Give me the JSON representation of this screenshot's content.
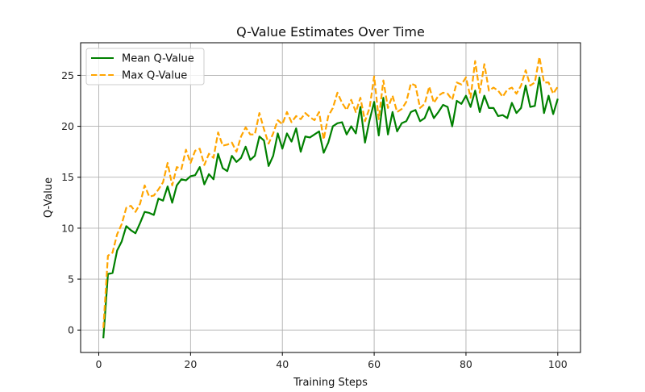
{
  "chart_data": {
    "type": "line",
    "title": "Q-Value Estimates Over Time",
    "xlabel": "Training Steps",
    "ylabel": "Q-Value",
    "xlim": [
      -3.95,
      104.95
    ],
    "ylim": [
      -2.2,
      28.2
    ],
    "xticks": [
      0,
      20,
      40,
      60,
      80,
      100
    ],
    "yticks": [
      0,
      5,
      10,
      15,
      20,
      25
    ],
    "grid": true,
    "legend_position": "top-left",
    "series": [
      {
        "name": "Mean Q-Value",
        "color": "#008000",
        "style": "solid",
        "x": [
          1,
          2,
          3,
          4,
          5,
          6,
          7,
          8,
          9,
          10,
          11,
          12,
          13,
          14,
          15,
          16,
          17,
          18,
          19,
          20,
          21,
          22,
          23,
          24,
          25,
          26,
          27,
          28,
          29,
          30,
          31,
          32,
          33,
          34,
          35,
          36,
          37,
          38,
          39,
          40,
          41,
          42,
          43,
          44,
          45,
          46,
          47,
          48,
          49,
          50,
          51,
          52,
          53,
          54,
          55,
          56,
          57,
          58,
          59,
          60,
          61,
          62,
          63,
          64,
          65,
          66,
          67,
          68,
          69,
          70,
          71,
          72,
          73,
          74,
          75,
          76,
          77,
          78,
          79,
          80,
          81,
          82,
          83,
          84,
          85,
          86,
          87,
          88,
          89,
          90,
          91,
          92,
          93,
          94,
          95,
          96,
          97,
          98,
          99,
          100
        ],
        "values": [
          -0.8,
          5.5,
          5.6,
          7.8,
          8.7,
          10.2,
          9.8,
          9.5,
          10.5,
          11.6,
          11.5,
          11.3,
          12.9,
          12.7,
          14.1,
          12.5,
          14.2,
          14.8,
          14.7,
          15.1,
          15.2,
          16.0,
          14.3,
          15.3,
          14.8,
          17.3,
          15.9,
          15.6,
          17.1,
          16.5,
          16.9,
          18.0,
          16.7,
          17.1,
          19.0,
          18.6,
          16.1,
          17.1,
          19.3,
          17.8,
          19.3,
          18.5,
          19.8,
          17.5,
          19.0,
          18.9,
          19.2,
          19.5,
          17.4,
          18.4,
          20.0,
          20.3,
          20.4,
          19.2,
          20.0,
          19.3,
          21.9,
          18.4,
          20.6,
          22.4,
          19.1,
          22.8,
          19.2,
          21.4,
          19.5,
          20.3,
          20.5,
          21.4,
          21.6,
          20.5,
          20.8,
          21.9,
          20.8,
          21.4,
          22.1,
          21.9,
          20.0,
          22.5,
          22.2,
          23.0,
          21.9,
          23.5,
          21.4,
          23.0,
          21.8,
          21.8,
          21.0,
          21.1,
          20.8,
          22.3,
          21.3,
          21.8,
          24.0,
          21.9,
          22.0,
          24.8,
          21.3,
          23.0,
          21.2,
          22.7
        ]
      },
      {
        "name": "Max Q-Value",
        "color": "#FFA500",
        "style": "dashed",
        "x": [
          1,
          2,
          3,
          4,
          5,
          6,
          7,
          8,
          9,
          10,
          11,
          12,
          13,
          14,
          15,
          16,
          17,
          18,
          19,
          20,
          21,
          22,
          23,
          24,
          25,
          26,
          27,
          28,
          29,
          30,
          31,
          32,
          33,
          34,
          35,
          36,
          37,
          38,
          39,
          40,
          41,
          42,
          43,
          44,
          45,
          46,
          47,
          48,
          49,
          50,
          51,
          52,
          53,
          54,
          55,
          56,
          57,
          58,
          59,
          60,
          61,
          62,
          63,
          64,
          65,
          66,
          67,
          68,
          69,
          70,
          71,
          72,
          73,
          74,
          75,
          76,
          77,
          78,
          79,
          80,
          81,
          82,
          83,
          84,
          85,
          86,
          87,
          88,
          89,
          90,
          91,
          92,
          93,
          94,
          95,
          96,
          97,
          98,
          99,
          100
        ],
        "values": [
          0.2,
          7.3,
          7.6,
          9.4,
          10.4,
          12.0,
          12.2,
          11.6,
          12.4,
          14.2,
          13.1,
          13.2,
          13.8,
          14.5,
          16.4,
          14.2,
          16.0,
          15.8,
          17.7,
          16.4,
          17.6,
          17.8,
          16.2,
          17.3,
          16.9,
          19.4,
          18.1,
          18.2,
          18.4,
          17.5,
          19.0,
          19.9,
          19.2,
          19.2,
          21.3,
          19.7,
          18.3,
          19.3,
          20.6,
          20.2,
          21.4,
          20.4,
          21.0,
          20.7,
          21.3,
          20.9,
          20.6,
          21.4,
          18.7,
          21.0,
          21.8,
          23.3,
          22.3,
          21.6,
          22.6,
          21.4,
          22.8,
          20.5,
          21.8,
          24.9,
          20.7,
          24.5,
          21.8,
          23.0,
          21.4,
          21.7,
          22.4,
          24.2,
          24.0,
          21.8,
          22.2,
          23.9,
          22.3,
          23.0,
          23.3,
          23.2,
          22.6,
          24.3,
          24.1,
          24.8,
          22.8,
          26.4,
          23.3,
          26.1,
          23.5,
          23.8,
          23.5,
          22.9,
          23.6,
          23.8,
          23.2,
          24.0,
          25.5,
          24.0,
          24.3,
          26.8,
          24.3,
          24.3,
          23.2,
          23.9
        ]
      }
    ]
  }
}
